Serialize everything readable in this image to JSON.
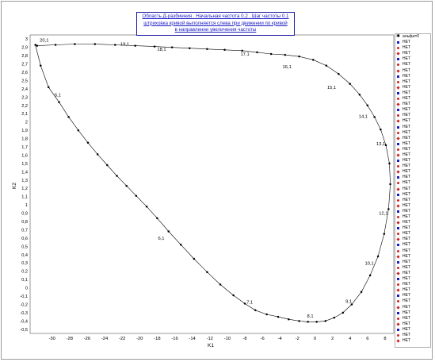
{
  "title_lines": [
    "Область Д-разбиения . Начальная частота 0.2 . Шаг частоты 0.1",
    "штриховка кривой выполняется слева при движении по кривой",
    "в направлении увеличения частоты"
  ],
  "legend": {
    "first": "альфа=0",
    "rest_label": "НЕТ",
    "rest_count": 54
  },
  "chart_data": {
    "type": "line",
    "xlabel": "K1",
    "ylabel": "K2",
    "xlim": [
      -32.5,
      9
    ],
    "ylim": [
      -0.55,
      3.05
    ],
    "x_ticks": [
      -30,
      -28,
      -26,
      -24,
      -22,
      -20,
      -18,
      -16,
      -14,
      -12,
      -10,
      -8,
      -6,
      -4,
      -2,
      0,
      2,
      4,
      6,
      8
    ],
    "y_ticks": [
      -0.5,
      -0.4,
      -0.3,
      -0.2,
      -0.1,
      0,
      0.1,
      0.2,
      0.3,
      0.4,
      0.5,
      0.6,
      0.7,
      0.8,
      0.9,
      1,
      1.1,
      1.2,
      1.3,
      1.4,
      1.5,
      1.6,
      1.7,
      1.8,
      1.9,
      2,
      2.1,
      2.2,
      2.3,
      2.4,
      2.5,
      2.6,
      2.7,
      2.8,
      2.9,
      3
    ],
    "grid": true,
    "series": [
      {
        "name": "альфа=0",
        "points": [
          [
            -31.9,
            2.93
          ],
          [
            -31.3,
            2.68
          ],
          [
            -30.4,
            2.42
          ],
          [
            -29.2,
            2.24
          ],
          [
            -28.1,
            2.06
          ],
          [
            -27.0,
            1.9
          ],
          [
            -25.9,
            1.75
          ],
          [
            -24.8,
            1.61
          ],
          [
            -23.7,
            1.48
          ],
          [
            -22.6,
            1.35
          ],
          [
            -21.5,
            1.23
          ],
          [
            -20.4,
            1.11
          ],
          [
            -19.2,
            0.98
          ],
          [
            -18.0,
            0.84
          ],
          [
            -16.7,
            0.68
          ],
          [
            -15.3,
            0.52
          ],
          [
            -13.8,
            0.35
          ],
          [
            -12.3,
            0.19
          ],
          [
            -10.8,
            0.04
          ],
          [
            -9.3,
            -0.09
          ],
          [
            -8.0,
            -0.19
          ],
          [
            -6.8,
            -0.27
          ],
          [
            -5.5,
            -0.32
          ],
          [
            -4.2,
            -0.35
          ],
          [
            -3.0,
            -0.38
          ],
          [
            -1.8,
            -0.4
          ],
          [
            -0.8,
            -0.41
          ],
          [
            0.2,
            -0.41
          ],
          [
            1.2,
            -0.4
          ],
          [
            2.2,
            -0.36
          ],
          [
            3.2,
            -0.3
          ],
          [
            4.2,
            -0.2
          ],
          [
            5.3,
            -0.05
          ],
          [
            6.3,
            0.15
          ],
          [
            7.2,
            0.38
          ],
          [
            7.9,
            0.65
          ],
          [
            8.4,
            0.95
          ],
          [
            8.6,
            1.25
          ],
          [
            8.5,
            1.5
          ],
          [
            8.1,
            1.72
          ],
          [
            7.5,
            1.91
          ],
          [
            6.8,
            2.06
          ],
          [
            6.0,
            2.2
          ],
          [
            5.1,
            2.33
          ],
          [
            4.0,
            2.46
          ],
          [
            2.7,
            2.58
          ],
          [
            1.3,
            2.68
          ],
          [
            -0.2,
            2.75
          ],
          [
            -1.8,
            2.79
          ],
          [
            -3.4,
            2.81
          ],
          [
            -5.0,
            2.82
          ],
          [
            -6.6,
            2.84
          ],
          [
            -8.3,
            2.86
          ],
          [
            -10.3,
            2.87
          ],
          [
            -12.3,
            2.88
          ],
          [
            -14.3,
            2.89
          ],
          [
            -16.3,
            2.9
          ],
          [
            -18.3,
            2.91
          ],
          [
            -20.5,
            2.92
          ],
          [
            -22.8,
            2.93
          ],
          [
            -25.1,
            2.94
          ],
          [
            -27.4,
            2.94
          ],
          [
            -29.6,
            2.93
          ],
          [
            -31.7,
            2.92
          ]
        ]
      }
    ],
    "annotations": [
      {
        "text": "20,1",
        "x": -31.4,
        "y": 2.97
      },
      {
        "text": "19,1",
        "x": -22.2,
        "y": 2.92
      },
      {
        "text": "18,1",
        "x": -18.0,
        "y": 2.86
      },
      {
        "text": "17,1",
        "x": -8.5,
        "y": 2.8
      },
      {
        "text": "16,1",
        "x": -3.7,
        "y": 2.65
      },
      {
        "text": "15,1",
        "x": 1.4,
        "y": 2.4
      },
      {
        "text": "14,1",
        "x": 5.0,
        "y": 2.05
      },
      {
        "text": "13,1",
        "x": 7.0,
        "y": 1.72
      },
      {
        "text": "12,1",
        "x": 7.3,
        "y": 0.88
      },
      {
        "text": "10,1",
        "x": 5.7,
        "y": 0.28
      },
      {
        "text": "9,1",
        "x": 3.5,
        "y": -0.18
      },
      {
        "text": "8,1",
        "x": -0.9,
        "y": -0.36
      },
      {
        "text": "7,1",
        "x": -7.8,
        "y": -0.19
      },
      {
        "text": "6,1",
        "x": -17.9,
        "y": 0.58
      },
      {
        "text": "5,1",
        "x": -29.7,
        "y": 2.31
      }
    ]
  }
}
